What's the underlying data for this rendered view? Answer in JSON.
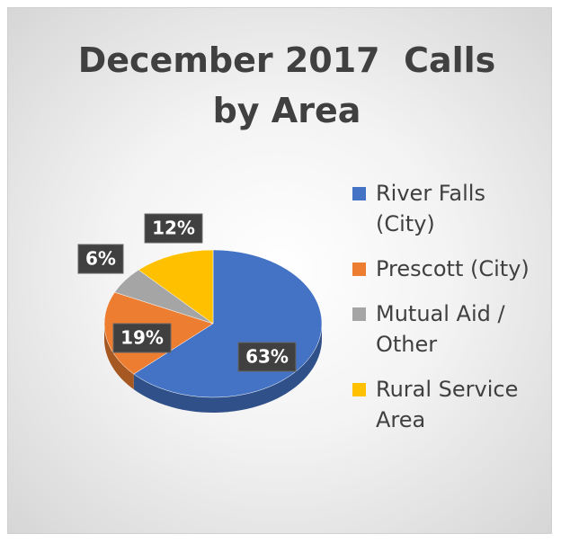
{
  "chart_data": {
    "type": "pie",
    "title": "December 2017  Calls by Area",
    "categories": [
      "River Falls (City)",
      "Prescott (City)",
      "Mutual Aid / Other",
      "Rural Service Area"
    ],
    "values": [
      63,
      19,
      6,
      12
    ],
    "value_labels": [
      "63%",
      "19%",
      "6%",
      "12%"
    ],
    "colors": [
      "#4472c4",
      "#ed7d31",
      "#a5a5a5",
      "#ffc000"
    ],
    "legend": "right"
  }
}
